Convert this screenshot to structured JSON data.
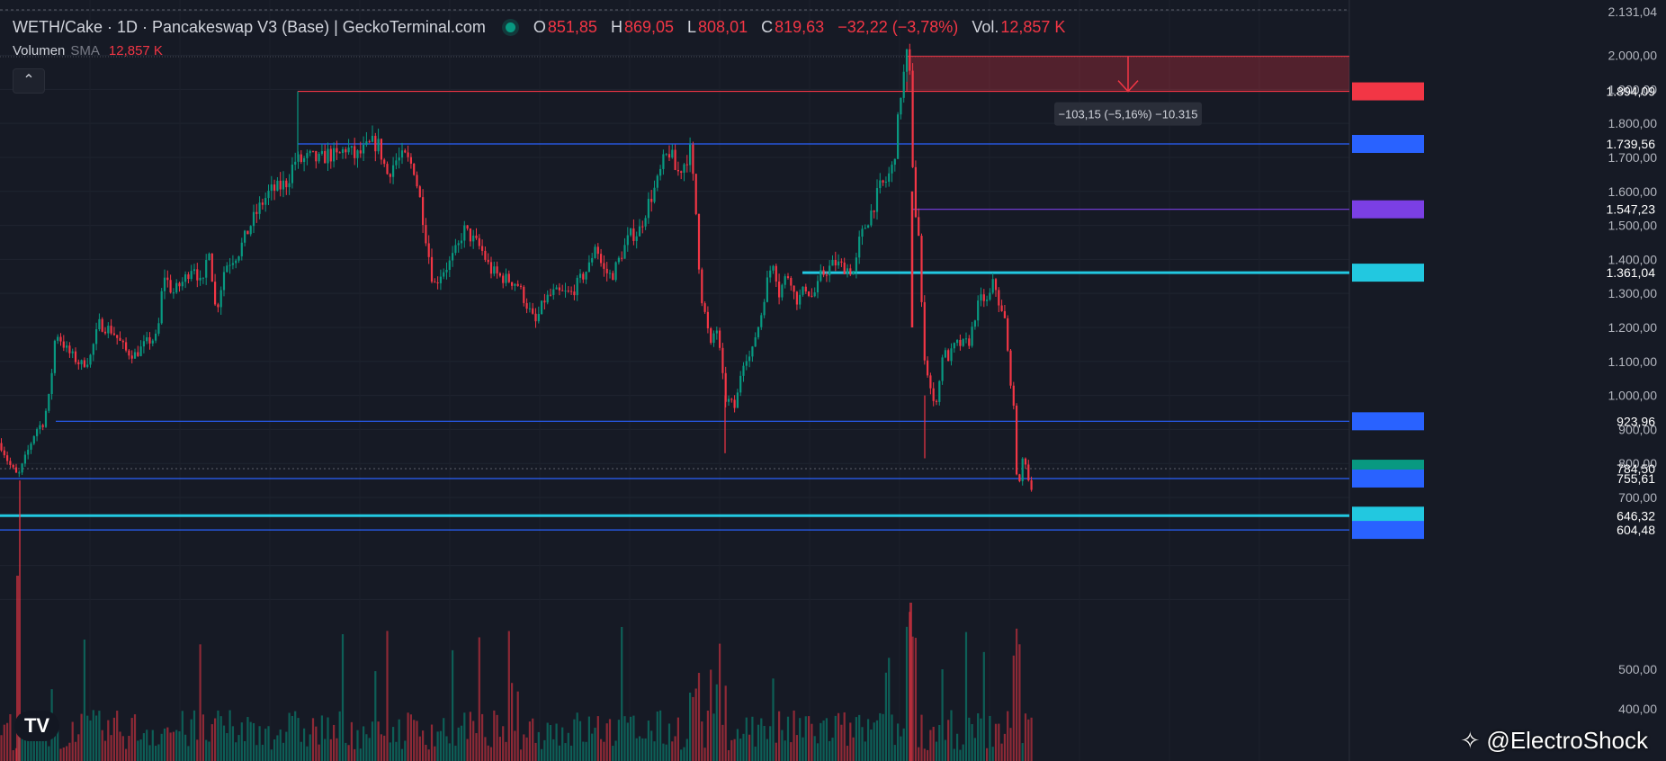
{
  "header": {
    "symbol": "WETH/Cake · 1D · Pancakeswap V3 (Base) | GeckoTerminal.com",
    "ohlc": {
      "o_label": "O",
      "o": "851,85",
      "h_label": "H",
      "h": "869,05",
      "l_label": "L",
      "l": "808,01",
      "c_label": "C",
      "c": "819,63",
      "change": "−32,22 (−3,78%)",
      "vol_label": "Vol.",
      "vol": "12,857 K"
    },
    "volume_indicator": {
      "label": "Volumen",
      "type": "SMA",
      "value": "12,857 K"
    },
    "collapse_icon": "chevron-up-icon",
    "status_color": "#089981"
  },
  "chart_data": {
    "type": "candlestick",
    "y_axis_ticks": [
      "2.131,04",
      "2.000,00",
      "1.900,00",
      "1.800,00",
      "1.700,00",
      "1.600,00",
      "1.500,00",
      "1.400,00",
      "1.300,00",
      "1.200,00",
      "1.100,00",
      "1.000,00",
      "900,00",
      "800,00",
      "700,00",
      "500,00",
      "400,00"
    ],
    "ylim": [
      380,
      2140
    ],
    "colors": {
      "up": "#089981",
      "down": "#f23645"
    },
    "horizontal_lines": [
      {
        "price": 1894.09,
        "label": "1.894,09",
        "color": "#f23645"
      },
      {
        "price": 1739.56,
        "label": "1.739,56",
        "color": "#2962ff"
      },
      {
        "price": 1547.23,
        "label": "1.547,23",
        "color": "#7b3fe4"
      },
      {
        "price": 1361.04,
        "label": "1.361,04",
        "color": "#22c8e0"
      },
      {
        "price": 923.96,
        "label": "923,96",
        "color": "#2962ff"
      },
      {
        "price": 784.5,
        "label": "784,50",
        "color": "#089981"
      },
      {
        "price": 755.61,
        "label": "755,61",
        "color": "#2962ff"
      },
      {
        "price": 646.32,
        "label": "646,32",
        "color": "#22c8e0"
      },
      {
        "price": 604.48,
        "label": "604,48",
        "color": "#2962ff"
      }
    ],
    "measure": {
      "from": 1997.24,
      "to": 1894.09,
      "label": "−103,15 (−5,16%) −10.315"
    },
    "close_path": [
      [
        0,
        860
      ],
      [
        10,
        800
      ],
      [
        20,
        760
      ],
      [
        30,
        830
      ],
      [
        40,
        900
      ],
      [
        48,
        920
      ],
      [
        55,
        1000
      ],
      [
        62,
        1190
      ],
      [
        75,
        1130
      ],
      [
        90,
        1090
      ],
      [
        100,
        1110
      ],
      [
        110,
        1210
      ],
      [
        125,
        1190
      ],
      [
        140,
        1130
      ],
      [
        150,
        1120
      ],
      [
        165,
        1160
      ],
      [
        175,
        1170
      ],
      [
        182,
        1360
      ],
      [
        192,
        1300
      ],
      [
        205,
        1340
      ],
      [
        215,
        1390
      ],
      [
        225,
        1310
      ],
      [
        232,
        1450
      ],
      [
        240,
        1240
      ],
      [
        250,
        1380
      ],
      [
        265,
        1420
      ],
      [
        280,
        1510
      ],
      [
        290,
        1560
      ],
      [
        300,
        1600
      ],
      [
        310,
        1610
      ],
      [
        320,
        1630
      ],
      [
        327,
        1690
      ],
      [
        335,
        1690
      ],
      [
        345,
        1700
      ],
      [
        355,
        1690
      ],
      [
        365,
        1710
      ],
      [
        375,
        1700
      ],
      [
        385,
        1730
      ],
      [
        395,
        1700
      ],
      [
        405,
        1720
      ],
      [
        413,
        1740
      ],
      [
        420,
        1740
      ],
      [
        425,
        1700
      ],
      [
        430,
        1650
      ],
      [
        440,
        1690
      ],
      [
        450,
        1700
      ],
      [
        460,
        1670
      ],
      [
        468,
        1560
      ],
      [
        475,
        1440
      ],
      [
        482,
        1320
      ],
      [
        490,
        1360
      ],
      [
        500,
        1390
      ],
      [
        510,
        1440
      ],
      [
        515,
        1490
      ],
      [
        525,
        1460
      ],
      [
        535,
        1430
      ],
      [
        545,
        1370
      ],
      [
        555,
        1350
      ],
      [
        565,
        1340
      ],
      [
        575,
        1330
      ],
      [
        585,
        1270
      ],
      [
        595,
        1210
      ],
      [
        605,
        1280
      ],
      [
        615,
        1300
      ],
      [
        625,
        1300
      ],
      [
        635,
        1300
      ],
      [
        645,
        1340
      ],
      [
        655,
        1380
      ],
      [
        662,
        1450
      ],
      [
        670,
        1370
      ],
      [
        680,
        1350
      ],
      [
        690,
        1410
      ],
      [
        700,
        1470
      ],
      [
        710,
        1480
      ],
      [
        720,
        1560
      ],
      [
        730,
        1620
      ],
      [
        738,
        1690
      ],
      [
        745,
        1720
      ],
      [
        752,
        1650
      ],
      [
        760,
        1680
      ],
      [
        767,
        1720
      ],
      [
        773,
        1570
      ],
      [
        776,
        1420
      ],
      [
        780,
        1290
      ],
      [
        785,
        1220
      ],
      [
        790,
        1140
      ],
      [
        796,
        1210
      ],
      [
        800,
        1130
      ],
      [
        806,
        990
      ],
      [
        812,
        980
      ],
      [
        818,
        960
      ],
      [
        822,
        1050
      ],
      [
        828,
        1120
      ],
      [
        835,
        1110
      ],
      [
        840,
        1180
      ],
      [
        845,
        1220
      ],
      [
        850,
        1300
      ],
      [
        855,
        1360
      ],
      [
        860,
        1400
      ],
      [
        866,
        1300
      ],
      [
        872,
        1340
      ],
      [
        878,
        1360
      ],
      [
        884,
        1280
      ],
      [
        890,
        1290
      ],
      [
        896,
        1320
      ],
      [
        902,
        1290
      ],
      [
        908,
        1310
      ],
      [
        912,
        1350
      ],
      [
        920,
        1370
      ],
      [
        928,
        1390
      ],
      [
        935,
        1380
      ],
      [
        945,
        1370
      ],
      [
        950,
        1360
      ],
      [
        955,
        1450
      ],
      [
        962,
        1500
      ],
      [
        970,
        1550
      ],
      [
        978,
        1610
      ],
      [
        985,
        1630
      ],
      [
        992,
        1670
      ],
      [
        997,
        1760
      ],
      [
        1000,
        1870
      ],
      [
        1004,
        1930
      ],
      [
        1008,
        1997
      ],
      [
        1012,
        1920
      ],
      [
        1015,
        1650
      ],
      [
        1018,
        1530
      ],
      [
        1021,
        1480
      ],
      [
        1024,
        1280
      ],
      [
        1028,
        1110
      ],
      [
        1033,
        1040
      ],
      [
        1038,
        970
      ],
      [
        1043,
        1010
      ],
      [
        1048,
        1130
      ],
      [
        1055,
        1110
      ],
      [
        1062,
        1150
      ],
      [
        1070,
        1150
      ],
      [
        1078,
        1160
      ],
      [
        1085,
        1250
      ],
      [
        1092,
        1290
      ],
      [
        1098,
        1270
      ],
      [
        1104,
        1330
      ],
      [
        1108,
        1310
      ],
      [
        1112,
        1250
      ],
      [
        1117,
        1220
      ],
      [
        1122,
        1070
      ],
      [
        1126,
        1000
      ],
      [
        1130,
        780
      ],
      [
        1134,
        730
      ],
      [
        1138,
        850
      ],
      [
        1142,
        760
      ],
      [
        1147,
        730
      ]
    ],
    "xlabel": "",
    "ylabel": ""
  },
  "watermark": {
    "text": "@ElectroShock",
    "icon": "diamond-icon"
  },
  "logo": {
    "text": "TV"
  }
}
